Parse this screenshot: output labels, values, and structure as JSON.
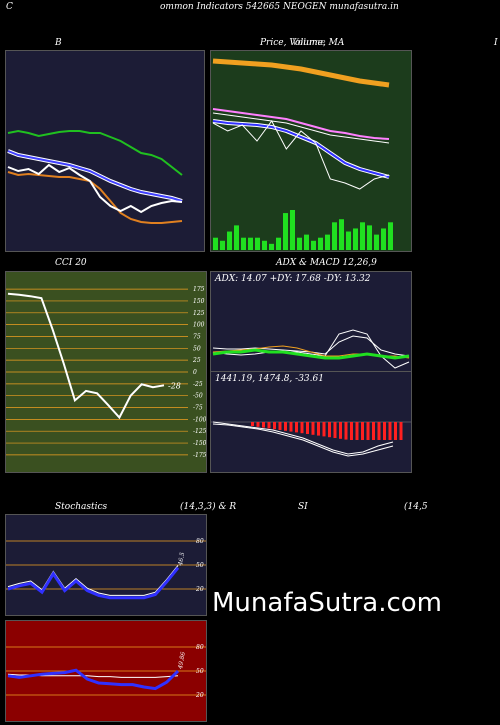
{
  "header": {
    "left": "C",
    "center": "ommon  Indicators 542665 NEOGEN  munafasutra.in"
  },
  "panels": {
    "bb_title": "B",
    "price_title": "Price,  Volume,  MA",
    "price_title_overlay": "Volume",
    "right_edge": "I",
    "cci_title": "CCI 20",
    "cci_value": "-28",
    "adx_title": "ADX  & MACD 12,26,9",
    "adx_readout": "ADX: 14.07  +DY: 17.68  -DY: 13.32",
    "macd_readout": "1441.19,  1474.8,  -33.61",
    "stoch_title": "Stochastics",
    "stoch_params": "(14,3,3) & R",
    "rsi_title": "SI",
    "rsi_params": "(14,5",
    "stoch_value": "46.5",
    "rsi_value": "49.86"
  },
  "watermark": "MunafaSutra.com",
  "colors": {
    "navy": "#1c1c36",
    "dark_green": "#1c3c1c",
    "olive": "#3a5020",
    "dark_red": "#8b0000",
    "orange": "#f0a020",
    "green": "#20e020",
    "blue": "#3030ff",
    "red": "#ff2020"
  },
  "chart_data": [
    {
      "type": "line",
      "name": "Bollinger Bands",
      "series": [
        {
          "name": "upper",
          "values": [
            82,
            80,
            82,
            85,
            83,
            81,
            80,
            80,
            82,
            82,
            86,
            90,
            96,
            102,
            104,
            108,
            116,
            124
          ]
        },
        {
          "name": "middle",
          "values": [
            100,
            104,
            106,
            108,
            110,
            112,
            114,
            117,
            120,
            125,
            130,
            134,
            138,
            141,
            143,
            145,
            147,
            150
          ]
        },
        {
          "name": "lower",
          "values": [
            121,
            124,
            123,
            124,
            125,
            126,
            126,
            128,
            130,
            138,
            150,
            162,
            168,
            171,
            172,
            172,
            171,
            170
          ]
        },
        {
          "name": "price",
          "values": [
            116,
            120,
            118,
            123,
            114,
            121,
            117,
            124,
            130,
            146,
            155,
            160,
            155,
            161,
            155,
            152,
            150,
            151
          ]
        }
      ]
    },
    {
      "type": "bar",
      "name": "Volume",
      "values": [
        4,
        3,
        6,
        8,
        4,
        4,
        4,
        3,
        2,
        4,
        12,
        13,
        4,
        5,
        3,
        4,
        5,
        9,
        10,
        6,
        7,
        9,
        8,
        5,
        7,
        9
      ]
    },
    {
      "type": "line",
      "name": "CCI",
      "ylim": [
        -190,
        190
      ],
      "yticks": [
        175,
        150,
        125,
        100,
        75,
        50,
        25,
        0,
        -25,
        -50,
        -75,
        -100,
        -125,
        -150,
        -175
      ],
      "values": [
        165,
        163,
        160,
        156,
        90,
        18,
        -60,
        -40,
        -45,
        -70,
        -96,
        -50,
        -26,
        -32,
        -28
      ]
    },
    {
      "type": "line",
      "name": "Stochastics",
      "yticks": [
        80,
        50,
        20
      ],
      "values": [
        20,
        24,
        27,
        16,
        39,
        18,
        30,
        18,
        12,
        9,
        9,
        9,
        9,
        13,
        29,
        46.5
      ]
    },
    {
      "type": "line",
      "name": "RSI",
      "yticks": [
        80,
        50,
        20
      ],
      "values": [
        44,
        42,
        44,
        46,
        47,
        48,
        51,
        40,
        35,
        34,
        33,
        33,
        30,
        28,
        36,
        49.86
      ]
    }
  ]
}
